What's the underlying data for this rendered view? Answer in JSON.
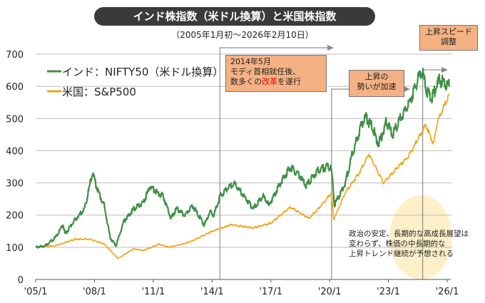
{
  "title": "インド株指数（米ドル換算）と米国株指数",
  "subtitle": "（2005年1月初～2026年2月10日）",
  "annotations": {
    "modi": {
      "line1": "2014年5月",
      "line2": "モディ首相就任後、",
      "line3_pre": "数多くの",
      "line3_red": "改革",
      "line3_post": "を遂行"
    },
    "accel": {
      "line1": "上昇の",
      "line2": "勢いが加速"
    },
    "adjust": {
      "line1": "上昇スピード",
      "line2": "調整"
    },
    "note": {
      "line1": "政治の安定、長期的な高成長展望は",
      "line2": "変わらず、株価の中長期的な",
      "line3": "上昇トレンド継続が予想される"
    }
  },
  "colors": {
    "india": "#3f8f45",
    "us": "#f2a30f",
    "box": "#f4b183",
    "highlight": "#fdf0c8",
    "red_text": "#e00000"
  },
  "chart_data": {
    "type": "line",
    "ylim": [
      0,
      700
    ],
    "yticks": [
      0,
      100,
      200,
      300,
      400,
      500,
      600,
      700
    ],
    "xlim": [
      2005,
      2026.1
    ],
    "xticks": [
      {
        "v": 2005,
        "label": "'05/1"
      },
      {
        "v": 2008,
        "label": "'08/1"
      },
      {
        "v": 2011,
        "label": "'11/1"
      },
      {
        "v": 2014,
        "label": "'14/1"
      },
      {
        "v": 2017,
        "label": "'17/1"
      },
      {
        "v": 2020,
        "label": "'20/1"
      },
      {
        "v": 2023,
        "label": "'23/1"
      },
      {
        "v": 2026,
        "label": "'26/1"
      }
    ],
    "grid": true,
    "legend": "top-left",
    "event_markers": [
      2014.4,
      2020.1,
      2024.75
    ],
    "series": [
      {
        "name": "インド：NIFTY50（米ドル換算）",
        "color": "#3f8f45",
        "points": [
          [
            2005,
            100
          ],
          [
            2005.5,
            105
          ],
          [
            2006,
            130
          ],
          [
            2006.4,
            170
          ],
          [
            2006.5,
            140
          ],
          [
            2007,
            185
          ],
          [
            2007.5,
            220
          ],
          [
            2007.9,
            330
          ],
          [
            2008.2,
            270
          ],
          [
            2008.5,
            230
          ],
          [
            2008.8,
            130
          ],
          [
            2009.1,
            105
          ],
          [
            2009.5,
            180
          ],
          [
            2010,
            220
          ],
          [
            2010.5,
            240
          ],
          [
            2010.85,
            290
          ],
          [
            2011.2,
            270
          ],
          [
            2011.5,
            260
          ],
          [
            2011.9,
            190
          ],
          [
            2012.2,
            220
          ],
          [
            2012.6,
            200
          ],
          [
            2013,
            230
          ],
          [
            2013.6,
            170
          ],
          [
            2013.9,
            210
          ],
          [
            2014.1,
            200
          ],
          [
            2014.4,
            260
          ],
          [
            2015.1,
            300
          ],
          [
            2015.5,
            270
          ],
          [
            2016.1,
            220
          ],
          [
            2016.6,
            260
          ],
          [
            2016.9,
            230
          ],
          [
            2017.5,
            300
          ],
          [
            2018,
            350
          ],
          [
            2018.5,
            320
          ],
          [
            2018.8,
            290
          ],
          [
            2019.4,
            340
          ],
          [
            2019.9,
            350
          ],
          [
            2020.1,
            340
          ],
          [
            2020.25,
            230
          ],
          [
            2020.8,
            300
          ],
          [
            2021.2,
            400
          ],
          [
            2021.8,
            510
          ],
          [
            2022.2,
            470
          ],
          [
            2022.5,
            420
          ],
          [
            2022.9,
            490
          ],
          [
            2023.2,
            450
          ],
          [
            2023.7,
            510
          ],
          [
            2024,
            540
          ],
          [
            2024.7,
            650
          ],
          [
            2025,
            580
          ],
          [
            2025.2,
            560
          ],
          [
            2025.6,
            620
          ],
          [
            2026.1,
            600
          ]
        ]
      },
      {
        "name": "米国：S&P500",
        "color": "#f2a30f",
        "points": [
          [
            2005,
            100
          ],
          [
            2006,
            105
          ],
          [
            2007,
            125
          ],
          [
            2007.8,
            125
          ],
          [
            2008.5,
            110
          ],
          [
            2009.2,
            65
          ],
          [
            2010,
            95
          ],
          [
            2010.5,
            90
          ],
          [
            2011.3,
            110
          ],
          [
            2011.8,
            100
          ],
          [
            2012.5,
            110
          ],
          [
            2013,
            120
          ],
          [
            2014,
            150
          ],
          [
            2015,
            170
          ],
          [
            2016.1,
            160
          ],
          [
            2017,
            175
          ],
          [
            2018,
            225
          ],
          [
            2018.95,
            190
          ],
          [
            2019.5,
            225
          ],
          [
            2020.1,
            270
          ],
          [
            2020.2,
            185
          ],
          [
            2020.8,
            270
          ],
          [
            2021.5,
            330
          ],
          [
            2022,
            390
          ],
          [
            2022.75,
            300
          ],
          [
            2023.5,
            350
          ],
          [
            2024,
            380
          ],
          [
            2024.9,
            480
          ],
          [
            2025.3,
            420
          ],
          [
            2025.5,
            490
          ],
          [
            2026.1,
            575
          ]
        ]
      }
    ]
  }
}
